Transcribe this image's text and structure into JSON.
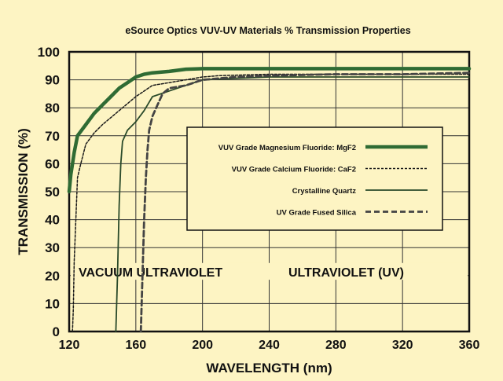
{
  "chart_data": {
    "type": "line",
    "title": "eSource Optics VUV-UV Materials % Transmission Properties",
    "xlabel": "WAVELENGTH (nm)",
    "ylabel": "TRANSMISSION (%)",
    "xlim": [
      120,
      360
    ],
    "ylim": [
      0,
      100
    ],
    "xticks": [
      120,
      160,
      200,
      240,
      280,
      320,
      360
    ],
    "yticks": [
      0,
      10,
      20,
      30,
      40,
      50,
      60,
      70,
      80,
      90,
      100
    ],
    "grid": true,
    "legend_position": "center-right",
    "regions": [
      {
        "label": "VACUUM ULTRAVIOLET"
      },
      {
        "label": "ULTRAVIOLET (UV)"
      }
    ],
    "series": [
      {
        "name": "VUV Grade Magnesium Fluoride: MgF2",
        "style": "thick-solid",
        "points": [
          [
            120,
            50
          ],
          [
            121,
            56
          ],
          [
            123,
            64
          ],
          [
            125,
            70
          ],
          [
            130,
            74
          ],
          [
            135,
            78
          ],
          [
            140,
            81
          ],
          [
            145,
            84
          ],
          [
            150,
            87
          ],
          [
            155,
            89
          ],
          [
            160,
            91
          ],
          [
            165,
            92
          ],
          [
            170,
            92.5
          ],
          [
            180,
            93
          ],
          [
            190,
            93.8
          ],
          [
            200,
            94
          ],
          [
            240,
            94
          ],
          [
            280,
            94
          ],
          [
            320,
            94
          ],
          [
            360,
            94
          ]
        ]
      },
      {
        "name": "VUV Grade Calcium Fluoride: CaF2",
        "style": "dashed",
        "points": [
          [
            122,
            0
          ],
          [
            122.5,
            8
          ],
          [
            123,
            25
          ],
          [
            124,
            40
          ],
          [
            125,
            55
          ],
          [
            127,
            60
          ],
          [
            130,
            67
          ],
          [
            135,
            71
          ],
          [
            140,
            74
          ],
          [
            150,
            79
          ],
          [
            160,
            84
          ],
          [
            170,
            88
          ],
          [
            180,
            89
          ],
          [
            190,
            90
          ],
          [
            200,
            91
          ],
          [
            210,
            91.5
          ],
          [
            240,
            92
          ],
          [
            280,
            92
          ],
          [
            320,
            92
          ],
          [
            360,
            92
          ]
        ]
      },
      {
        "name": "Crystalline Quartz",
        "style": "solid",
        "points": [
          [
            148,
            0
          ],
          [
            149,
            20
          ],
          [
            150,
            45
          ],
          [
            151,
            60
          ],
          [
            152,
            68
          ],
          [
            155,
            72
          ],
          [
            160,
            75
          ],
          [
            165,
            79
          ],
          [
            170,
            84
          ],
          [
            180,
            86
          ],
          [
            190,
            88
          ],
          [
            200,
            90
          ],
          [
            240,
            91
          ],
          [
            280,
            91
          ],
          [
            320,
            91
          ],
          [
            360,
            91
          ]
        ]
      },
      {
        "name": "UV Grade Fused Silica",
        "style": "thick-dashed",
        "points": [
          [
            163,
            0
          ],
          [
            164,
            20
          ],
          [
            165,
            40
          ],
          [
            166,
            55
          ],
          [
            167,
            65
          ],
          [
            168,
            72
          ],
          [
            170,
            77
          ],
          [
            173,
            81
          ],
          [
            176,
            85
          ],
          [
            180,
            87
          ],
          [
            190,
            88
          ],
          [
            200,
            90
          ],
          [
            220,
            91
          ],
          [
            240,
            91.5
          ],
          [
            280,
            92
          ],
          [
            320,
            92
          ],
          [
            360,
            92.5
          ]
        ]
      }
    ]
  }
}
